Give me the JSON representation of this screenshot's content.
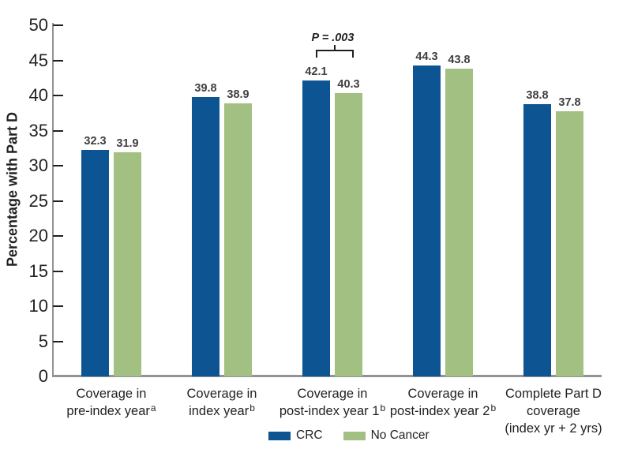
{
  "chart_data": {
    "type": "bar",
    "title": "",
    "ylabel": "Percentage with Part D",
    "xlabel": "",
    "ylim": [
      0,
      50
    ],
    "ytick_step": 5,
    "grid": false,
    "legend_position": "bottom",
    "categories": [
      {
        "lines": [
          "Coverage in",
          "pre-index year"
        ],
        "superscript": "a"
      },
      {
        "lines": [
          "Coverage in",
          "index year"
        ],
        "superscript": "b"
      },
      {
        "lines": [
          "Coverage in",
          "post-index year 1"
        ],
        "superscript": "b"
      },
      {
        "lines": [
          "Coverage in",
          "post-index year 2"
        ],
        "superscript": "b"
      },
      {
        "lines": [
          "Complete Part D",
          "coverage",
          "(index yr + 2 yrs)"
        ],
        "superscript": ""
      }
    ],
    "series": [
      {
        "name": "CRC",
        "color": "#0D5493",
        "values": [
          32.3,
          39.8,
          42.1,
          44.3,
          38.8
        ]
      },
      {
        "name": "No Cancer",
        "color": "#A1C081",
        "values": [
          31.9,
          38.9,
          40.3,
          43.8,
          37.8
        ]
      }
    ],
    "annotation": {
      "text": "P = .003",
      "category_index": 2
    }
  },
  "colors": {
    "axis_line": "#919396",
    "tick_mark": "#231f20",
    "axis_text": "#231f20",
    "value_label_text": "#404042",
    "background": "#ffffff"
  }
}
